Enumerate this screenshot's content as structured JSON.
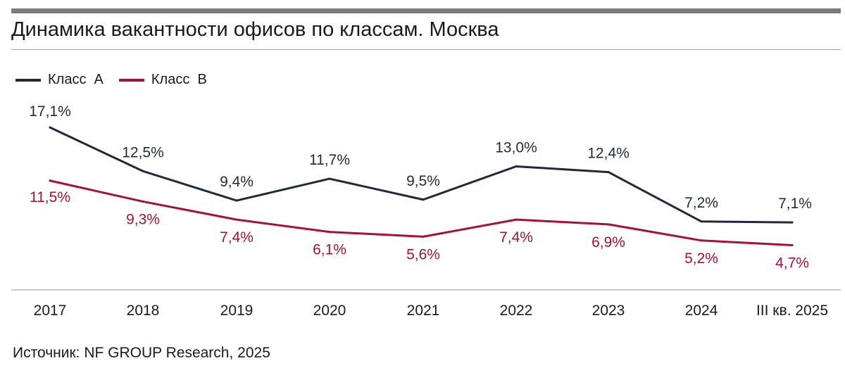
{
  "title": "Динамика вакантности офисов по классам. Москва",
  "source": "Источник: NF GROUP Research, 2025",
  "colors": {
    "class_a": "#1e2a3a",
    "class_b": "#a51237",
    "axis": "#9a9a9a",
    "rule": "#7a7a7a"
  },
  "chart_data": {
    "type": "line",
    "title": "Динамика вакантности офисов по классам. Москва",
    "xlabel": "",
    "ylabel": "",
    "categories": [
      "2017",
      "2018",
      "2019",
      "2020",
      "2021",
      "2022",
      "2023",
      "2024",
      "III кв. 2025"
    ],
    "ylim": [
      0,
      20
    ],
    "grid": false,
    "legend": "top-left",
    "series": [
      {
        "name": "Класс  A",
        "color": "#1e2a3a",
        "values": [
          17.1,
          12.5,
          9.4,
          11.7,
          9.5,
          13.0,
          12.4,
          7.2,
          7.1
        ],
        "labels": [
          "17,1%",
          "12,5%",
          "9,4%",
          "11,7%",
          "9,5%",
          "13,0%",
          "12,4%",
          "7,2%",
          "7,1%"
        ]
      },
      {
        "name": "Класс  B",
        "color": "#a51237",
        "values": [
          11.5,
          9.3,
          7.4,
          6.1,
          5.6,
          7.4,
          6.9,
          5.2,
          4.7
        ],
        "labels": [
          "11,5%",
          "9,3%",
          "7,4%",
          "6,1%",
          "5,6%",
          "7,4%",
          "6,9%",
          "5,2%",
          "4,7%"
        ]
      }
    ]
  }
}
